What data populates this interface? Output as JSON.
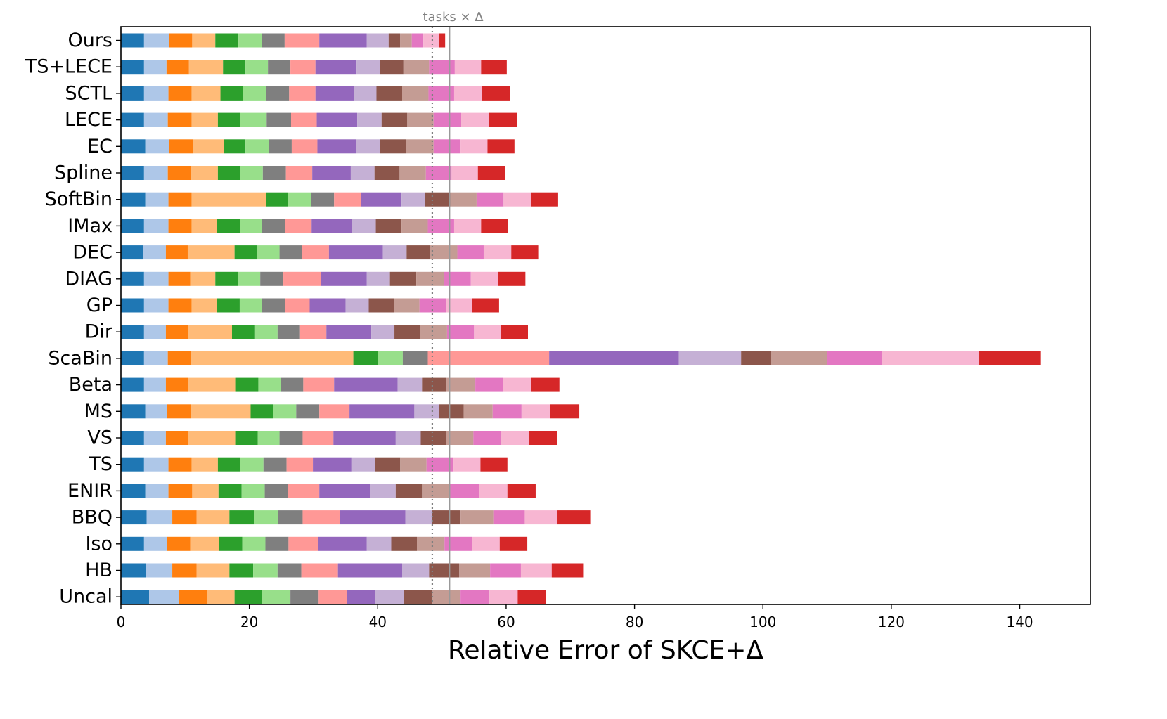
{
  "chart_data": {
    "type": "bar",
    "orientation": "horizontal",
    "stacked": true,
    "title": "",
    "xlabel": "Relative Error of SKCE+Δ",
    "ylabel": "",
    "xlim": [
      0,
      151
    ],
    "xticks": [
      0,
      20,
      40,
      60,
      80,
      100,
      120,
      140
    ],
    "grid": false,
    "legend": "none",
    "colors": [
      "#1f77b4",
      "#aec7e8",
      "#ff7f0e",
      "#ffbb78",
      "#2ca02c",
      "#98df8a",
      "#7f7f7f",
      "#ff9896",
      "#9467bd",
      "#c5b0d5",
      "#8c564b",
      "#c49c94",
      "#e377c2",
      "#f7b6d2",
      "#d62728"
    ],
    "reference_lines": [
      {
        "value": 48.5,
        "style": "dotted",
        "label": ""
      },
      {
        "value": 51.2,
        "style": "solid",
        "label": "tasks × Δ"
      }
    ],
    "categories": [
      "Ours",
      "TS+LECE",
      "SCTL",
      "LECE",
      "EC",
      "Spline",
      "SoftBin",
      "IMax",
      "DEC",
      "DIAG",
      "GP",
      "Dir",
      "ScaBin",
      "Beta",
      "MS",
      "VS",
      "TS",
      "ENIR",
      "BBQ",
      "Iso",
      "HB",
      "Uncal"
    ],
    "segments": [
      [
        3.6,
        3.6,
        3.6,
        3.6,
        3.8,
        3.6,
        3.8,
        3.6,
        3.4,
        3.6,
        3.6,
        3.6,
        3.6,
        3.6,
        3.8,
        3.6,
        3.6,
        3.8,
        4.0,
        3.6,
        3.9,
        4.4
      ],
      [
        3.9,
        3.5,
        3.8,
        3.7,
        3.7,
        3.7,
        3.6,
        3.8,
        3.6,
        3.8,
        3.8,
        3.4,
        3.7,
        3.4,
        3.4,
        3.4,
        3.8,
        3.6,
        4.0,
        3.6,
        4.1,
        4.6
      ],
      [
        3.6,
        3.5,
        3.6,
        3.7,
        3.7,
        3.6,
        3.6,
        3.6,
        3.4,
        3.4,
        3.6,
        3.5,
        3.6,
        3.5,
        3.7,
        3.5,
        3.6,
        3.7,
        3.8,
        3.6,
        3.8,
        4.4
      ],
      [
        3.6,
        5.3,
        4.5,
        4.1,
        4.8,
        4.2,
        11.6,
        4.0,
        7.3,
        3.9,
        3.9,
        6.8,
        25.3,
        7.3,
        9.3,
        7.3,
        4.1,
        4.1,
        5.1,
        4.5,
        5.1,
        4.3
      ],
      [
        3.6,
        3.5,
        3.5,
        3.5,
        3.4,
        3.5,
        3.4,
        3.6,
        3.5,
        3.5,
        3.6,
        3.6,
        3.8,
        3.6,
        3.5,
        3.5,
        3.5,
        3.6,
        3.8,
        3.6,
        3.7,
        4.3
      ],
      [
        3.6,
        3.5,
        3.6,
        4.1,
        3.6,
        3.5,
        3.6,
        3.4,
        3.5,
        3.5,
        3.5,
        3.5,
        3.9,
        3.5,
        3.6,
        3.4,
        3.6,
        3.6,
        3.8,
        3.6,
        3.8,
        4.4
      ],
      [
        3.6,
        3.5,
        3.6,
        3.8,
        3.6,
        3.6,
        3.6,
        3.6,
        3.5,
        3.6,
        3.6,
        3.5,
        3.9,
        3.5,
        3.6,
        3.6,
        3.6,
        3.6,
        3.8,
        3.6,
        3.7,
        4.4
      ],
      [
        5.4,
        3.9,
        4.1,
        4.0,
        4.0,
        4.1,
        4.2,
        4.1,
        4.2,
        5.8,
        3.8,
        4.1,
        18.9,
        4.8,
        4.7,
        4.8,
        4.1,
        4.9,
        5.8,
        4.6,
        5.7,
        4.4
      ],
      [
        7.4,
        6.4,
        6.0,
        6.3,
        6.0,
        6.0,
        6.3,
        6.3,
        8.4,
        7.2,
        5.6,
        7.0,
        20.2,
        9.9,
        10.1,
        9.7,
        6.0,
        7.9,
        10.2,
        7.6,
        10.0,
        4.4
      ],
      [
        3.4,
        3.6,
        3.5,
        3.8,
        3.8,
        3.7,
        3.7,
        3.7,
        3.7,
        3.6,
        3.6,
        3.6,
        9.7,
        3.8,
        3.9,
        3.9,
        3.7,
        4.0,
        4.1,
        3.8,
        4.2,
        4.5
      ],
      [
        1.8,
        3.7,
        4.0,
        4.0,
        4.0,
        3.9,
        3.9,
        4.0,
        3.6,
        4.1,
        3.9,
        4.0,
        4.6,
        3.8,
        3.8,
        3.9,
        3.9,
        4.1,
        4.5,
        4.0,
        4.7,
        4.3
      ],
      [
        1.8,
        4.0,
        4.1,
        4.1,
        4.3,
        4.1,
        4.1,
        4.1,
        4.3,
        4.3,
        4.0,
        4.2,
        8.8,
        4.5,
        4.5,
        4.3,
        4.1,
        4.4,
        5.1,
        4.3,
        4.8,
        4.5
      ],
      [
        1.8,
        4.0,
        4.0,
        4.3,
        4.2,
        4.0,
        4.2,
        4.1,
        4.1,
        4.2,
        4.2,
        4.2,
        8.5,
        4.3,
        4.5,
        4.3,
        4.2,
        4.5,
        4.9,
        4.3,
        4.8,
        4.5
      ],
      [
        2.4,
        4.1,
        4.3,
        4.3,
        4.2,
        4.1,
        4.3,
        4.2,
        4.3,
        4.3,
        4.0,
        4.2,
        15.1,
        4.4,
        4.5,
        4.4,
        4.2,
        4.4,
        5.1,
        4.3,
        4.8,
        4.4
      ],
      [
        1.0,
        4.0,
        4.4,
        4.4,
        4.2,
        4.2,
        4.2,
        4.2,
        4.2,
        4.2,
        4.2,
        4.2,
        9.7,
        4.4,
        4.5,
        4.3,
        4.2,
        4.4,
        5.1,
        4.3,
        5.0,
        4.4
      ]
    ]
  }
}
